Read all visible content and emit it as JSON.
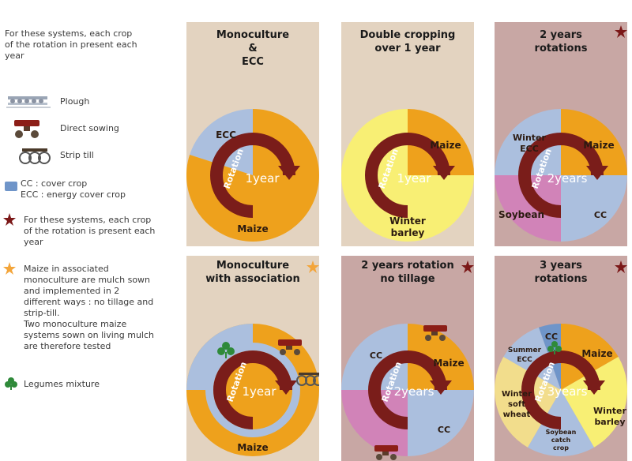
{
  "legend": {
    "intro": [
      "For these systems, each crop",
      "of the rotation in present each",
      "year"
    ],
    "plough": "Plough",
    "direct_sowing": "Direct sowing",
    "strip_till": "Strip till",
    "cc_def": "CC : cover crop",
    "ecc_def": "ECC : energy cover crop",
    "star_note": [
      "For these systems, each crop",
      "of the rotation is present each",
      "year"
    ],
    "orange_note": [
      "Maize in associated",
      "monoculture are mulch sown",
      "and implemented in 2",
      "different ways : no tillage and",
      "strip-till.",
      "Two monoculture maize",
      "systems sown on living mulch",
      "are therefore tested"
    ],
    "legumes": "Legumes mixture"
  },
  "colors": {
    "beige": "#e3d3c0",
    "mauve": "#c8a7a4",
    "maize": "#eea11c",
    "ecc_blue": "#abbfde",
    "barley_yellow": "#f8ef74",
    "soybean_pink": "#d183b8",
    "wheat_cream": "#f2dd8c",
    "cc_dark_blue": "#6f95c9",
    "arrow": "#7a1d1a",
    "star_red": "#7b1818",
    "star_orange": "#f3a53a",
    "legume_green": "#2f8a3a"
  },
  "rotation_word": "Rotation",
  "panels": [
    {
      "id": "monoculture-ecc",
      "title": [
        "Monoculture",
        "&",
        "ECC"
      ],
      "center": "1year",
      "star": "none",
      "labels": [
        "ECC",
        "Maize"
      ]
    },
    {
      "id": "double-cropping",
      "title": [
        "Double cropping",
        "over 1 year"
      ],
      "center": "1year",
      "star": "none",
      "labels": [
        "Maize",
        "Winter",
        "barley"
      ]
    },
    {
      "id": "two-years-rotations",
      "title": [
        "2 years",
        "rotations"
      ],
      "center": "2years",
      "star": "red",
      "labels": [
        "Winter",
        "ECC",
        "Maize",
        "Soybean",
        "CC"
      ]
    },
    {
      "id": "monoculture-association",
      "title": [
        "Monoculture",
        "with association"
      ],
      "center": "1year",
      "star": "orange",
      "labels": [
        "Maize"
      ]
    },
    {
      "id": "two-years-no-tillage",
      "title": [
        "2 years rotation",
        "no tillage"
      ],
      "center": "2years",
      "star": "red",
      "labels": [
        "CC",
        "Maize",
        "CC"
      ]
    },
    {
      "id": "three-years-rotations",
      "title": [
        "3 years",
        "rotations"
      ],
      "center": "3years",
      "star": "red",
      "labels": [
        "CC",
        "Summer",
        "ECC",
        "Maize",
        "Winter",
        "soft",
        "wheat",
        "Winter",
        "barley",
        "Soybean",
        "catch",
        "crop"
      ]
    }
  ]
}
